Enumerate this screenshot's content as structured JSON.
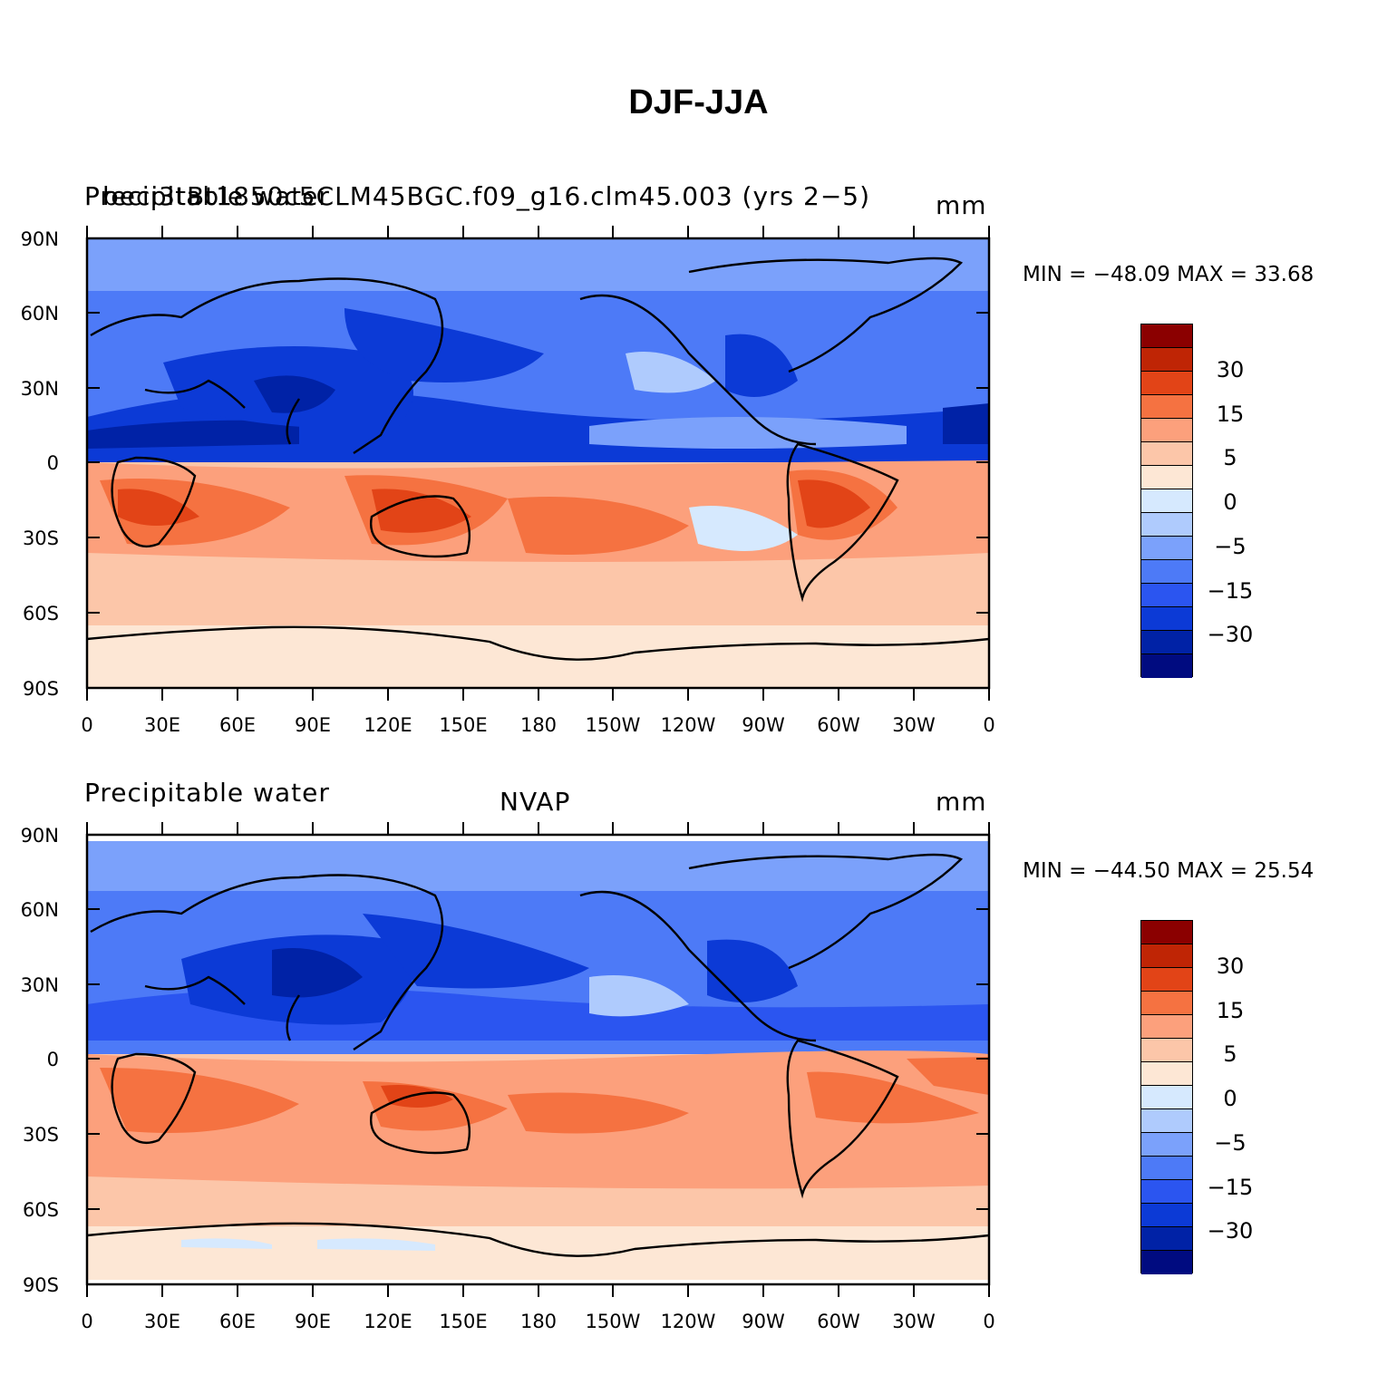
{
  "title": "DJF-JJA",
  "colors": {
    "levels": [
      "#000b80",
      "#0022a6",
      "#0c3ad6",
      "#2b55f0",
      "#4d7af7",
      "#7ba1fb",
      "#afcbfd",
      "#d6e9fe",
      "#fde7d5",
      "#fcc6a9",
      "#fca07c",
      "#f57241",
      "#e24417",
      "#bf2505",
      "#8b0000"
    ]
  },
  "colorbar": {
    "labels": [
      "30",
      "15",
      "5",
      "0",
      "−5",
      "−15",
      "−30"
    ]
  },
  "axes": {
    "lat_labels": [
      "90N",
      "60N",
      "30N",
      "0",
      "30S",
      "60S",
      "90S"
    ],
    "lon_labels": [
      "0",
      "30E",
      "60E",
      "90E",
      "120E",
      "150E",
      "180",
      "150W",
      "120W",
      "90W",
      "60W",
      "30W",
      "0"
    ]
  },
  "panels": [
    {
      "left_text": "Precipitable water",
      "overlay_text": "beci3tBt1850c5CLM45BGC.f09_g16.clm45.003 (yrs 2−5)",
      "center_text": "",
      "right_text": "mm",
      "minmax": "MIN = −48.09  MAX =   33.68"
    },
    {
      "left_text": "Precipitable water",
      "overlay_text": "",
      "center_text": "NVAP",
      "right_text": "mm",
      "minmax": "MIN = −44.50  MAX =   25.54"
    }
  ]
}
